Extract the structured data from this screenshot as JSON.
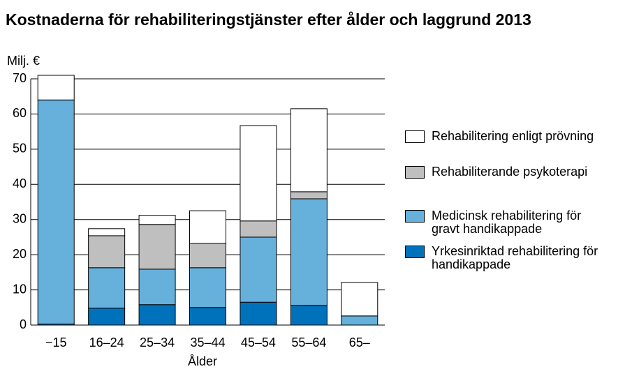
{
  "chart_data": {
    "type": "stacked_bar",
    "title": "Kostnaderna för rehabiliteringstjänster efter ålder och laggrund 2013",
    "y_label": "Milj. €",
    "x_label": "Ålder",
    "categories": [
      "−15",
      "16–24",
      "25–34",
      "35–44",
      "45–54",
      "55–64",
      "65–"
    ],
    "series": [
      {
        "name": "Yrkesinriktad rehabilitering för handikappade",
        "color": "#0072bc",
        "values": [
          0.3,
          4.8,
          5.8,
          5.0,
          6.5,
          5.6,
          0
        ]
      },
      {
        "name": "Medicinsk rehabilitering för gravt handikappade",
        "color": "#66b0dc",
        "values": [
          63.7,
          11.5,
          10.1,
          11.3,
          18.5,
          30.3,
          2.6
        ]
      },
      {
        "name": "Rehabiliterande psykoterapi",
        "color": "#bfbfbf",
        "values": [
          0,
          9.1,
          12.7,
          6.9,
          4.6,
          2.0,
          0
        ]
      },
      {
        "name": "Rehabilitering enligt prövning",
        "color": "#ffffff",
        "values": [
          7.0,
          2.0,
          2.6,
          9.3,
          27.1,
          23.6,
          9.5
        ]
      }
    ],
    "ylim": [
      0,
      70
    ],
    "yticks": [
      0,
      10,
      20,
      30,
      40,
      50,
      60,
      70
    ],
    "grid": true
  }
}
